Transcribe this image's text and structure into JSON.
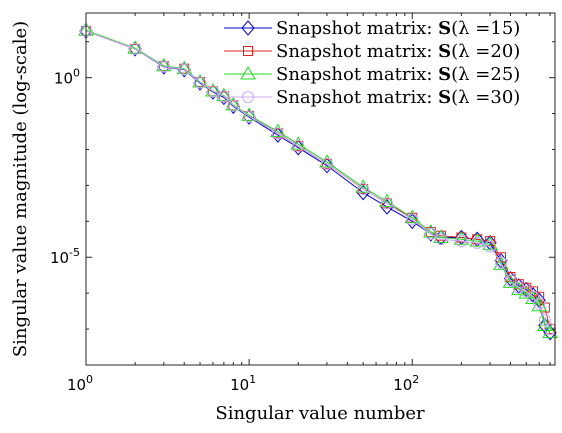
{
  "chart_data": {
    "type": "line",
    "title": "",
    "xlabel": "Singular value number",
    "ylabel": "Singular value magnitude (log-scale)",
    "xscale": "log",
    "yscale": "log",
    "xlim": [
      1,
      750
    ],
    "ylim_exponent": [
      -8,
      1.8
    ],
    "x_ticks": [
      {
        "base": "10",
        "exp": "0",
        "value": 1
      },
      {
        "base": "10",
        "exp": "1",
        "value": 10
      },
      {
        "base": "10",
        "exp": "2",
        "value": 100
      }
    ],
    "y_ticks": [
      {
        "base": "10",
        "exp": "0",
        "exp_value": 0
      },
      {
        "base": "10",
        "exp": "-5",
        "exp_value": -5
      }
    ],
    "legend_position": "top-right",
    "grid": false,
    "x": [
      1,
      2,
      3,
      4,
      5,
      6,
      7,
      8,
      10,
      15,
      20,
      30,
      50,
      70,
      100,
      130,
      150,
      200,
      250,
      300,
      350,
      400,
      450,
      500,
      550,
      600,
      650,
      700
    ],
    "series": [
      {
        "name": "Snapshot matrix: S(λ =15)",
        "marker": "diamond",
        "color": "#0000cc",
        "log10_values": [
          1.3,
          0.8,
          0.3,
          0.22,
          -0.15,
          -0.4,
          -0.55,
          -0.8,
          -1.1,
          -1.6,
          -1.95,
          -2.45,
          -3.2,
          -3.6,
          -4.0,
          -4.35,
          -4.45,
          -4.45,
          -4.5,
          -4.6,
          -5.1,
          -5.6,
          -5.8,
          -5.9,
          -6.05,
          -6.2,
          -6.9,
          -7.1
        ]
      },
      {
        "name": "Snapshot matrix: S(λ =20)",
        "marker": "square",
        "color": "#dd2222",
        "log10_values": [
          1.3,
          0.8,
          0.32,
          0.25,
          -0.12,
          -0.38,
          -0.52,
          -0.77,
          -1.07,
          -1.55,
          -1.9,
          -2.4,
          -3.1,
          -3.5,
          -3.9,
          -4.3,
          -4.4,
          -4.45,
          -4.5,
          -4.55,
          -5.0,
          -5.55,
          -5.75,
          -5.85,
          -5.95,
          -6.1,
          -6.4,
          -7.0
        ]
      },
      {
        "name": "Snapshot matrix: S(λ =25)",
        "marker": "triangle",
        "color": "#22dd22",
        "log10_values": [
          1.32,
          0.82,
          0.33,
          0.25,
          -0.12,
          -0.37,
          -0.5,
          -0.76,
          -1.05,
          -1.5,
          -1.85,
          -2.35,
          -3.05,
          -3.45,
          -3.9,
          -4.3,
          -4.45,
          -4.5,
          -4.55,
          -4.65,
          -5.2,
          -5.7,
          -5.9,
          -6.0,
          -6.15,
          -6.35,
          -6.9,
          -7.1
        ]
      },
      {
        "name": "Snapshot matrix: S(λ =30)",
        "marker": "circle",
        "color": "#c9a8f2",
        "log10_values": [
          1.3,
          0.8,
          0.31,
          0.23,
          -0.13,
          -0.38,
          -0.52,
          -0.78,
          -1.08,
          -1.55,
          -1.9,
          -2.4,
          -3.1,
          -3.5,
          -3.95,
          -4.35,
          -4.5,
          -4.55,
          -4.6,
          -4.7,
          -5.15,
          -5.65,
          -5.85,
          -5.95,
          -6.1,
          -6.3,
          -6.75,
          -7.0
        ]
      }
    ]
  },
  "legend": [
    {
      "prefix": "Snapshot matrix: ",
      "bold": "S",
      "lambda": "(λ =15)"
    },
    {
      "prefix": "Snapshot matrix: ",
      "bold": "S",
      "lambda": "(λ =20)"
    },
    {
      "prefix": "Snapshot matrix: ",
      "bold": "S",
      "lambda": "(λ =25)"
    },
    {
      "prefix": "Snapshot matrix: ",
      "bold": "S",
      "lambda": "(λ =30)"
    }
  ]
}
